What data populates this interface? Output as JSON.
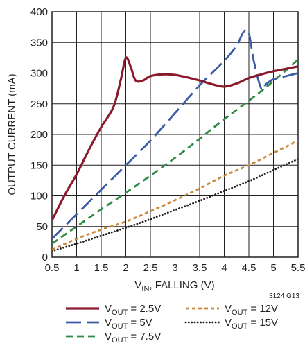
{
  "chart_data": {
    "type": "line",
    "xlabel": {
      "main": "V",
      "sub": "IN",
      "rest": ", FALLING (V)"
    },
    "ylabel": "OUTPUT CURRENT (mA)",
    "xlim": [
      0.5,
      5.5
    ],
    "ylim": [
      0,
      400
    ],
    "x_ticks": [
      "0.5",
      "1",
      "1.5",
      "2",
      "2.5",
      "3",
      "3.5",
      "4",
      "4.5",
      "5",
      "5.5"
    ],
    "y_ticks": [
      "0",
      "50",
      "100",
      "150",
      "200",
      "250",
      "300",
      "350",
      "400"
    ],
    "grid": true,
    "note": "3124 G13",
    "series": [
      {
        "name": "VOUT = 2.5V",
        "label": {
          "pre": "V",
          "sub": "OUT",
          "post": " = 2.5V"
        },
        "color": "#8b1a2e",
        "dash": "solid",
        "x": [
          0.5,
          0.75,
          1.0,
          1.25,
          1.5,
          1.75,
          1.9,
          2.0,
          2.1,
          2.2,
          2.35,
          2.5,
          2.75,
          3.0,
          3.25,
          3.5,
          3.75,
          4.0,
          4.25,
          4.5,
          4.75,
          5.0,
          5.25,
          5.5
        ],
        "y": [
          60,
          100,
          135,
          175,
          212,
          245,
          290,
          325,
          310,
          288,
          288,
          295,
          298,
          297,
          293,
          288,
          282,
          278,
          283,
          292,
          298,
          303,
          307,
          311
        ]
      },
      {
        "name": "VOUT = 5V",
        "label": {
          "pre": "V",
          "sub": "OUT",
          "post": " = 5V"
        },
        "color": "#3b5ba5",
        "dash": "longdash",
        "x": [
          0.5,
          1.0,
          1.5,
          2.0,
          2.5,
          3.0,
          3.5,
          4.0,
          4.25,
          4.4,
          4.5,
          4.6,
          4.75,
          4.85,
          5.0,
          5.25,
          5.5
        ],
        "y": [
          30,
          70,
          110,
          150,
          190,
          235,
          280,
          320,
          345,
          368,
          365,
          320,
          275,
          282,
          290,
          295,
          300
        ]
      },
      {
        "name": "VOUT = 7.5V",
        "label": {
          "pre": "V",
          "sub": "OUT",
          "post": " = 7.5V"
        },
        "color": "#2e8b45",
        "dash": "dash",
        "x": [
          0.5,
          1.0,
          1.5,
          2.0,
          2.5,
          3.0,
          3.5,
          4.0,
          4.5,
          5.0,
          5.5
        ],
        "y": [
          22,
          50,
          78,
          105,
          133,
          162,
          193,
          225,
          255,
          287,
          322
        ]
      },
      {
        "name": "VOUT = 12V",
        "label": {
          "pre": "V",
          "sub": "OUT",
          "post": " = 12V"
        },
        "color": "#c8873d",
        "dash": "shortdash",
        "x": [
          0.5,
          1.0,
          1.5,
          2.0,
          2.5,
          3.0,
          3.5,
          4.0,
          4.5,
          5.0,
          5.5
        ],
        "y": [
          12,
          30,
          45,
          58,
          75,
          93,
          112,
          133,
          150,
          170,
          190
        ]
      },
      {
        "name": "VOUT = 15V",
        "label": {
          "pre": "V",
          "sub": "OUT",
          "post": " = 15V"
        },
        "color": "#231f20",
        "dash": "dot",
        "x": [
          0.5,
          1.0,
          1.5,
          2.0,
          2.5,
          3.0,
          3.5,
          4.0,
          4.5,
          5.0,
          5.5
        ],
        "y": [
          10,
          22,
          35,
          48,
          62,
          77,
          92,
          108,
          124,
          142,
          160
        ]
      }
    ],
    "legend_placement": "bottom"
  }
}
